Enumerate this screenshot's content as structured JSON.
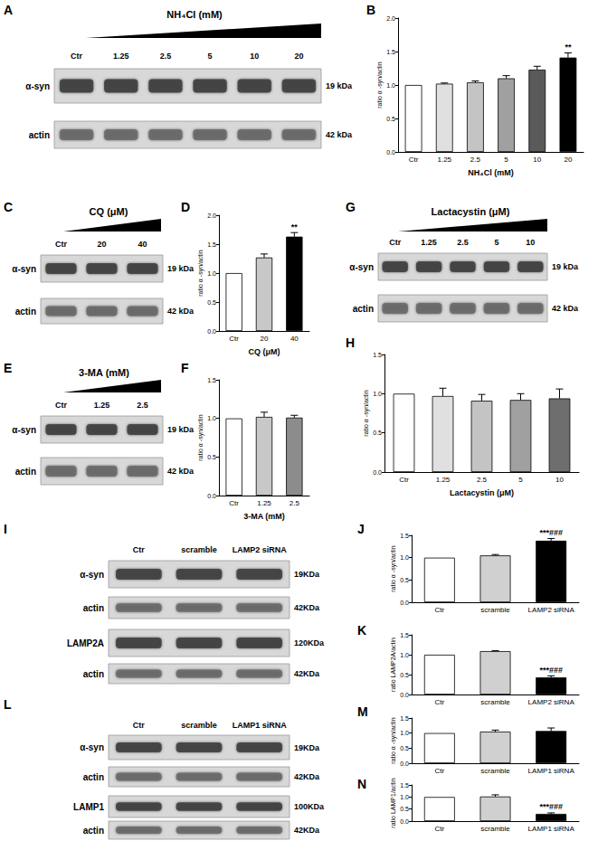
{
  "chart_data": [
    {
      "type": "bar",
      "panel": "B",
      "categories": [
        "Ctr",
        "1.25",
        "2.5",
        "5",
        "10",
        "20"
      ],
      "values": [
        1.0,
        1.02,
        1.04,
        1.1,
        1.23,
        1.41
      ],
      "errors": [
        0,
        0.01,
        0.02,
        0.04,
        0.05,
        0.07
      ],
      "colors": [
        "#ffffff",
        "#e0e0e0",
        "#c4c4c4",
        "#a0a0a0",
        "#5a5a5a",
        "#000000"
      ],
      "ylabel": "ratio α -syn/actin",
      "xlabel": "NH₄Cl (mM)",
      "ylim": [
        0,
        2.0
      ],
      "yticks": [
        {
          "value": 0,
          "label": "0.0"
        },
        0.5,
        {
          "value": 1,
          "label": "1.0"
        },
        1.5,
        {
          "value": 2,
          "label": "2.0"
        }
      ],
      "annotations": [
        {
          "category": "20",
          "text": "**"
        }
      ]
    },
    {
      "type": "bar",
      "panel": "D",
      "categories": [
        "Ctr",
        "20",
        "40"
      ],
      "values": [
        1.0,
        1.27,
        1.63
      ],
      "errors": [
        0,
        0.06,
        0.07
      ],
      "colors": [
        "#ffffff",
        "#c8c8c8",
        "#000000"
      ],
      "ylabel": "ratio α -syn/actin",
      "xlabel": "CQ (μM)",
      "ylim": [
        0,
        2.0
      ],
      "yticks": [
        {
          "value": 0,
          "label": "0.0"
        },
        0.5,
        {
          "value": 1,
          "label": "1.0"
        },
        1.5,
        {
          "value": 2,
          "label": "2.0"
        }
      ],
      "annotations": [
        {
          "category": "40",
          "text": "**"
        }
      ]
    },
    {
      "type": "bar",
      "panel": "F",
      "categories": [
        "Ctr",
        "1.25",
        "2.5"
      ],
      "values": [
        1.0,
        1.02,
        1.01
      ],
      "errors": [
        0,
        0.06,
        0.03
      ],
      "colors": [
        "#ffffff",
        "#c8c8c8",
        "#8c8c8c"
      ],
      "ylabel": "ratio α -syn/actin",
      "xlabel": "3-MA (mM)",
      "ylim": [
        0,
        1.5
      ],
      "yticks": [
        {
          "value": 0,
          "label": "0.0"
        },
        0.5,
        {
          "value": 1,
          "label": "1.0"
        },
        1.5
      ],
      "annotations": []
    },
    {
      "type": "bar",
      "panel": "H",
      "categories": [
        "Ctr",
        "1.25",
        "2.5",
        "5",
        "10"
      ],
      "values": [
        1.0,
        0.97,
        0.91,
        0.92,
        0.94
      ],
      "errors": [
        0,
        0.1,
        0.08,
        0.08,
        0.12
      ],
      "colors": [
        "#ffffff",
        "#e0e0e0",
        "#c4c4c4",
        "#a0a0a0",
        "#6e6e6e"
      ],
      "ylabel": "ratio α -syn/actin",
      "xlabel": "Lactacystin (μM)",
      "ylim": [
        0,
        1.5
      ],
      "yticks": [
        {
          "value": 0,
          "label": "0.0"
        },
        0.5,
        {
          "value": 1,
          "label": "1.0"
        },
        1.5
      ],
      "annotations": []
    },
    {
      "type": "bar",
      "panel": "J",
      "categories": [
        "Ctr",
        "scramble",
        "LAMP2 siRNA"
      ],
      "values": [
        1.0,
        1.05,
        1.38
      ],
      "errors": [
        0,
        0.02,
        0.05
      ],
      "colors": [
        "#ffffff",
        "#d0d0d0",
        "#000000"
      ],
      "ylabel": "ratio α -syn/actin",
      "ylim": [
        0,
        1.5
      ],
      "yticks": [
        {
          "value": 0,
          "label": "0.0"
        },
        0.5,
        {
          "value": 1,
          "label": "1.0"
        },
        1.5
      ],
      "annotations": [
        {
          "category": "LAMP2 siRNA",
          "text": "***###"
        }
      ]
    },
    {
      "type": "bar",
      "panel": "K",
      "categories": [
        "Ctr",
        "scramble",
        "LAMP2 siRNA"
      ],
      "values": [
        1.0,
        1.09,
        0.43
      ],
      "errors": [
        0,
        0.01,
        0.04
      ],
      "colors": [
        "#ffffff",
        "#d0d0d0",
        "#000000"
      ],
      "ylabel": "ratio LAMP2A/actin",
      "ylim": [
        0,
        1.5
      ],
      "yticks": [
        {
          "value": 0,
          "label": "0.0"
        },
        0.5,
        {
          "value": 1,
          "label": "1.0"
        },
        1.5
      ],
      "annotations": [
        {
          "category": "LAMP2 siRNA",
          "text": "***###"
        }
      ]
    },
    {
      "type": "bar",
      "panel": "M",
      "categories": [
        "Ctr",
        "scramble",
        "LAMP1 siRNA"
      ],
      "values": [
        1.0,
        1.05,
        1.07
      ],
      "errors": [
        0,
        0.05,
        0.1
      ],
      "colors": [
        "#ffffff",
        "#d0d0d0",
        "#000000"
      ],
      "ylabel": "ratio α -syn/actin",
      "ylim": [
        0,
        1.5
      ],
      "yticks": [
        {
          "value": 0,
          "label": "0.0"
        },
        0.5,
        {
          "value": 1,
          "label": "1.0"
        },
        1.5
      ],
      "annotations": []
    },
    {
      "type": "bar",
      "panel": "N",
      "categories": [
        "Ctr",
        "scramble",
        "LAMP1 siRNA"
      ],
      "values": [
        1.0,
        1.02,
        0.3
      ],
      "errors": [
        0,
        0.07,
        0.04
      ],
      "colors": [
        "#ffffff",
        "#d0d0d0",
        "#000000"
      ],
      "ylabel": "ratio LAMP1/actin",
      "ylim": [
        0,
        1.5
      ],
      "yticks": [
        {
          "value": 0,
          "label": "0.0"
        },
        0.5,
        {
          "value": 1,
          "label": "1.0"
        },
        1.5
      ],
      "annotations": [
        {
          "category": "LAMP1 siRNA",
          "text": "***###"
        }
      ]
    }
  ],
  "blots": [
    {
      "panel": "A",
      "treatment": "NH₄Cl (mM)",
      "lanes": [
        "Ctr",
        "1.25",
        "2.5",
        "5",
        "10",
        "20"
      ],
      "rows": [
        {
          "protein": "α-syn",
          "size": "19 kDa"
        },
        {
          "protein": "actin",
          "size": "42 kDa"
        }
      ]
    },
    {
      "panel": "C",
      "treatment": "CQ (μM)",
      "lanes": [
        "Ctr",
        "20",
        "40"
      ],
      "rows": [
        {
          "protein": "α-syn",
          "size": "19 kDa"
        },
        {
          "protein": "actin",
          "size": "42 kDa"
        }
      ]
    },
    {
      "panel": "G",
      "treatment": "Lactacystin (μM)",
      "lanes": [
        "Ctr",
        "1.25",
        "2.5",
        "5",
        "10"
      ],
      "rows": [
        {
          "protein": "α-syn",
          "size": "19 kDa"
        },
        {
          "protein": "actin",
          "size": "42 kDa"
        }
      ]
    },
    {
      "panel": "E",
      "treatment": "3-MA (mM)",
      "lanes": [
        "Ctr",
        "1.25",
        "2.5"
      ],
      "rows": [
        {
          "protein": "α-syn",
          "size": "19 kDa"
        },
        {
          "protein": "actin",
          "size": "42 kDa"
        }
      ]
    },
    {
      "panel": "I",
      "lanes": [
        "Ctr",
        "scramble",
        "LAMP2 siRNA"
      ],
      "rows": [
        {
          "protein": "α-syn",
          "size": "19KDa"
        },
        {
          "protein": "actin",
          "size": "42KDa"
        },
        {
          "protein": "LAMP2A",
          "size": "120KDa"
        },
        {
          "protein": "actin",
          "size": "42KDa"
        }
      ]
    },
    {
      "panel": "L",
      "lanes": [
        "Ctr",
        "scramble",
        "LAMP1 siRNA"
      ],
      "rows": [
        {
          "protein": "α-syn",
          "size": "19KDa"
        },
        {
          "protein": "actin",
          "size": "42KDa"
        },
        {
          "protein": "LAMP1",
          "size": "100KDa"
        },
        {
          "protein": "actin",
          "size": "42KDa"
        }
      ]
    }
  ]
}
